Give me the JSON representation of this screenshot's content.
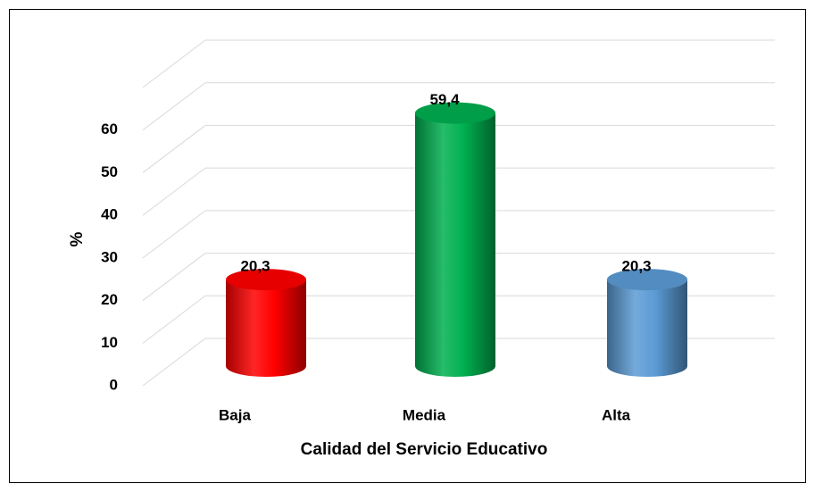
{
  "chart_data": {
    "type": "bar",
    "x_label": "Calidad del Servicio Educativo",
    "y_label": "%",
    "categories": [
      "Baja",
      "Media",
      "Alta"
    ],
    "values": [
      20.3,
      59.4,
      20.3
    ],
    "value_labels": [
      "20,3",
      "59,4",
      "20,3"
    ],
    "colors": [
      "#ff0000",
      "#00b050",
      "#5b9bd5"
    ],
    "ylim": [
      0,
      70
    ],
    "yticks": [
      0,
      10,
      20,
      30,
      40,
      50,
      60
    ],
    "grid": true
  }
}
